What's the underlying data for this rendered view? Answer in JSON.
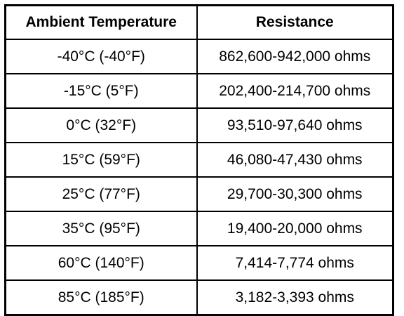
{
  "table": {
    "headers": {
      "temperature": "Ambient Temperature",
      "resistance": "Resistance"
    },
    "rows": [
      {
        "temperature": "-40°C (-40°F)",
        "resistance": "862,600-942,000 ohms"
      },
      {
        "temperature": "-15°C (5°F)",
        "resistance": "202,400-214,700 ohms"
      },
      {
        "temperature": "0°C (32°F)",
        "resistance": "93,510-97,640 ohms"
      },
      {
        "temperature": "15°C (59°F)",
        "resistance": "46,080-47,430 ohms"
      },
      {
        "temperature": "25°C (77°F)",
        "resistance": "29,700-30,300 ohms"
      },
      {
        "temperature": "35°C (95°F)",
        "resistance": "19,400-20,000 ohms"
      },
      {
        "temperature": "60°C (140°F)",
        "resistance": "7,414-7,774 ohms"
      },
      {
        "temperature": "85°C (185°F)",
        "resistance": "3,182-3,393 ohms"
      }
    ]
  }
}
